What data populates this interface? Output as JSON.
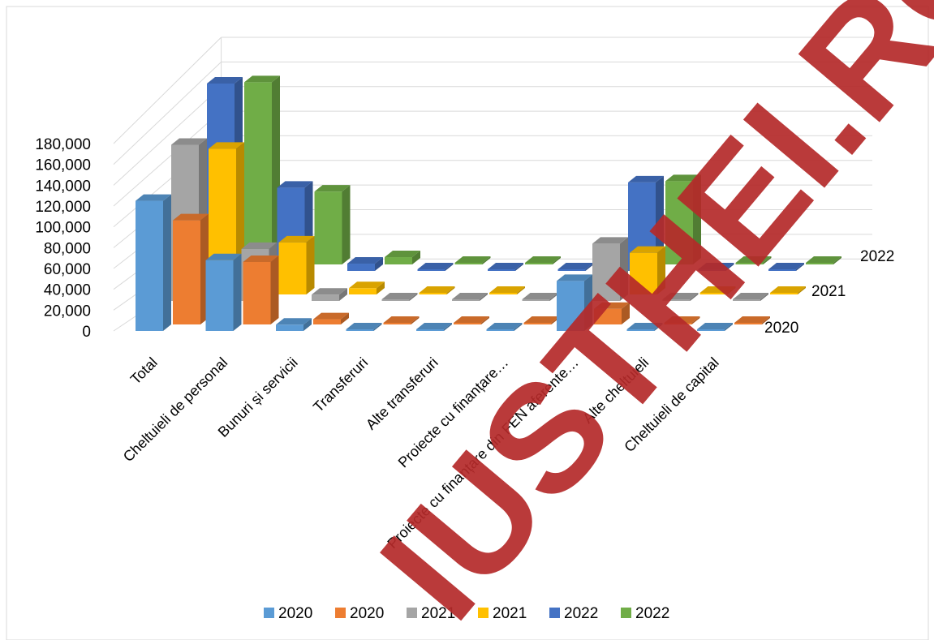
{
  "chart_data": {
    "type": "bar",
    "subtype": "3d-column",
    "title": "",
    "xlabel": "",
    "ylabel": "",
    "ylim": [
      0,
      180000
    ],
    "y_ticks": [
      "0",
      "20,000",
      "40,000",
      "60,000",
      "80,000",
      "100,000",
      "120,000",
      "140,000",
      "160,000",
      "180,000"
    ],
    "grid": true,
    "legend_position": "bottom",
    "categories": [
      "Total",
      "Cheltuieli de personal",
      "Bunuri și servicii",
      "Transferuri",
      "Alte transferuri",
      "Proiecte cu finanțare…",
      "Proiecte cu finanțare din FEN aferente…",
      "Alte cheltuieli",
      "Cheltuieli de capital"
    ],
    "depth_labels": [
      "2022",
      "2021",
      "2020"
    ],
    "series": [
      {
        "name": "2020",
        "color": "#5b9bd5",
        "values": [
          125000,
          68000,
          6000,
          0,
          0,
          0,
          48000,
          0,
          0
        ]
      },
      {
        "name": "2020",
        "color": "#ed7d31",
        "values": [
          100000,
          60000,
          5000,
          0,
          0,
          0,
          15000,
          0,
          0
        ]
      },
      {
        "name": "2021",
        "color": "#a5a5a5",
        "values": [
          150000,
          50000,
          6000,
          0,
          0,
          0,
          55000,
          0,
          0
        ]
      },
      {
        "name": "2021",
        "color": "#ffc000",
        "values": [
          140000,
          50000,
          6000,
          0,
          0,
          0,
          40000,
          0,
          0
        ]
      },
      {
        "name": "2022",
        "color": "#4472c4",
        "values": [
          180000,
          80000,
          7000,
          0,
          0,
          0,
          85000,
          0,
          0
        ]
      },
      {
        "name": "2022",
        "color": "#70ad47",
        "values": [
          175000,
          70000,
          7000,
          0,
          0,
          0,
          80000,
          0,
          0
        ]
      }
    ]
  },
  "legend": [
    {
      "label": "2020",
      "color": "#5b9bd5"
    },
    {
      "label": "2020",
      "color": "#ed7d31"
    },
    {
      "label": "2021",
      "color": "#a5a5a5"
    },
    {
      "label": "2021",
      "color": "#ffc000"
    },
    {
      "label": "2022",
      "color": "#4472c4"
    },
    {
      "label": "2022",
      "color": "#70ad47"
    }
  ],
  "watermark": {
    "text": "IUSTHEI.RO",
    "color": "#b52a2a"
  }
}
